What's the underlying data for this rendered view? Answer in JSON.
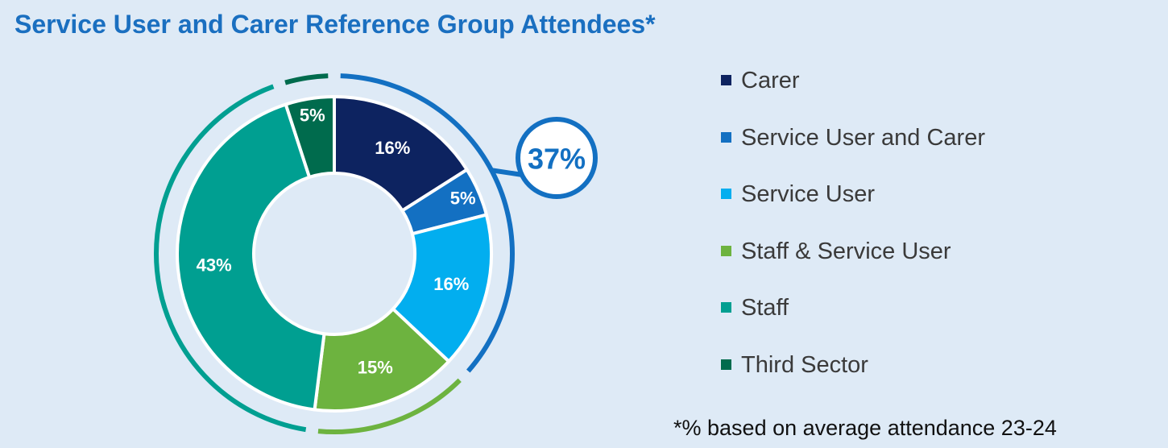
{
  "title": "Service User and Carer Reference Group Attendees*",
  "footnote": "*% based on average attendance 23-24",
  "chart_data": {
    "type": "pie",
    "style": "donut",
    "categories": [
      "Carer",
      "Service User and Carer",
      "Service User",
      "Staff & Service User",
      "Staff",
      "Third Sector"
    ],
    "values": [
      16,
      5,
      16,
      15,
      43,
      5
    ],
    "labels": [
      "16%",
      "5%",
      "16%",
      "15%",
      "43%",
      "5%"
    ],
    "colors": [
      "#0d2360",
      "#1370c2",
      "#02aeef",
      "#6db33f",
      "#009f91",
      "#006b4d"
    ],
    "legend_position": "right",
    "group_callout": {
      "label": "37%",
      "categories": [
        "Carer",
        "Service User and Carer",
        "Service User"
      ],
      "color": "#1370c2"
    }
  }
}
